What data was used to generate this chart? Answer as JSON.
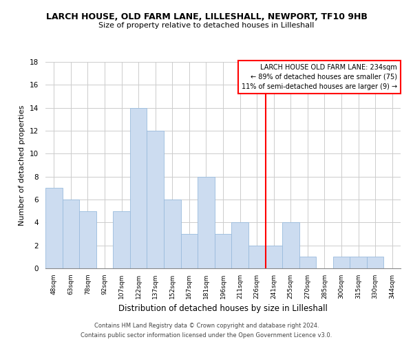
{
  "title": "LARCH HOUSE, OLD FARM LANE, LILLESHALL, NEWPORT, TF10 9HB",
  "subtitle": "Size of property relative to detached houses in Lilleshall",
  "xlabel": "Distribution of detached houses by size in Lilleshall",
  "ylabel": "Number of detached properties",
  "bar_labels": [
    "48sqm",
    "63sqm",
    "78sqm",
    "92sqm",
    "107sqm",
    "122sqm",
    "137sqm",
    "152sqm",
    "167sqm",
    "181sqm",
    "196sqm",
    "211sqm",
    "226sqm",
    "241sqm",
    "255sqm",
    "270sqm",
    "285sqm",
    "300sqm",
    "315sqm",
    "330sqm",
    "344sqm"
  ],
  "bar_values": [
    7,
    6,
    5,
    0,
    5,
    14,
    12,
    6,
    3,
    8,
    3,
    4,
    2,
    2,
    4,
    1,
    0,
    1,
    1,
    1,
    0
  ],
  "bar_color": "#ccdcf0",
  "bar_edge_color": "#99bbdd",
  "ylim": [
    0,
    18
  ],
  "yticks": [
    0,
    2,
    4,
    6,
    8,
    10,
    12,
    14,
    16,
    18
  ],
  "property_line_x": 13.03,
  "annotation_title": "LARCH HOUSE OLD FARM LANE: 234sqm",
  "annotation_line1": "← 89% of detached houses are smaller (75)",
  "annotation_line2": "11% of semi-detached houses are larger (9) →",
  "footer_line1": "Contains HM Land Registry data © Crown copyright and database right 2024.",
  "footer_line2": "Contains public sector information licensed under the Open Government Licence v3.0.",
  "background_color": "#ffffff",
  "grid_color": "#cccccc",
  "title_fontsize": 9,
  "subtitle_fontsize": 8,
  "ylabel_fontsize": 8,
  "xlabel_fontsize": 8.5,
  "tick_fontsize": 6.5,
  "annotation_fontsize": 7,
  "footer_fontsize": 6
}
